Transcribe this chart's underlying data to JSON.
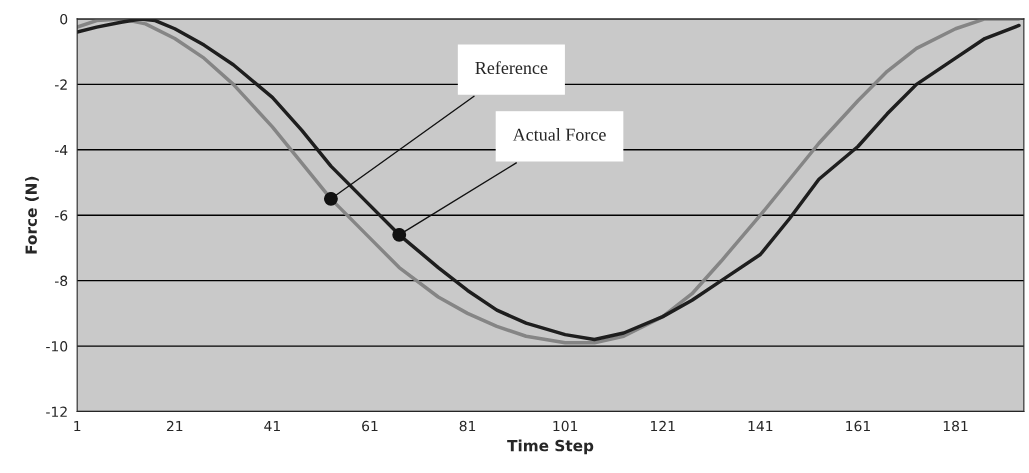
{
  "chart_data": {
    "type": "line",
    "xlabel": "Time Step",
    "ylabel": "Force (N)",
    "xlim": [
      1,
      195
    ],
    "xticks": [
      1,
      21,
      41,
      61,
      81,
      101,
      121,
      141,
      161,
      181
    ],
    "ylim": [
      -12,
      0
    ],
    "yticks": [
      -12,
      -10,
      -8,
      -6,
      -4,
      -2,
      0
    ],
    "grid": "y",
    "legend": false,
    "marker": "none",
    "line_style": "solid",
    "series": [
      {
        "color": "#858585",
        "x": [
          1,
          5,
          10,
          15,
          21,
          27,
          33,
          41,
          47,
          53,
          61,
          67,
          75,
          81,
          87,
          93,
          101,
          107,
          113,
          121,
          127,
          133,
          141,
          147,
          153,
          161,
          167,
          173,
          181,
          187,
          194
        ],
        "values": [
          -0.25,
          -0.05,
          0,
          -0.15,
          -0.6,
          -1.2,
          -2.0,
          -3.3,
          -4.4,
          -5.5,
          -6.7,
          -7.6,
          -8.5,
          -9.0,
          -9.4,
          -9.7,
          -9.9,
          -9.9,
          -9.7,
          -9.1,
          -8.4,
          -7.4,
          -6.0,
          -4.9,
          -3.8,
          -2.5,
          -1.6,
          -0.9,
          -0.3,
          0,
          0
        ]
      },
      {
        "color": "#1e1e1e",
        "x": [
          1,
          5,
          10,
          14,
          17,
          21,
          27,
          33,
          41,
          47,
          53,
          61,
          67,
          75,
          81,
          87,
          93,
          101,
          107,
          113,
          121,
          127,
          133,
          141,
          147,
          153,
          161,
          167,
          173,
          181,
          187,
          194
        ],
        "values": [
          -0.4,
          -0.25,
          -0.1,
          0,
          -0.05,
          -0.3,
          -0.8,
          -1.4,
          -2.4,
          -3.4,
          -4.5,
          -5.7,
          -6.6,
          -7.6,
          -8.3,
          -8.9,
          -9.3,
          -9.65,
          -9.8,
          -9.6,
          -9.1,
          -8.6,
          -8.0,
          -7.2,
          -6.1,
          -4.9,
          -3.9,
          -2.9,
          -2.0,
          -1.2,
          -0.6,
          -0.2
        ]
      }
    ],
    "annotations": [
      {
        "text": "Reference",
        "x": 53,
        "y": -5.5
      },
      {
        "text": "Actual Force",
        "x": 67,
        "y": -6.6
      }
    ]
  }
}
